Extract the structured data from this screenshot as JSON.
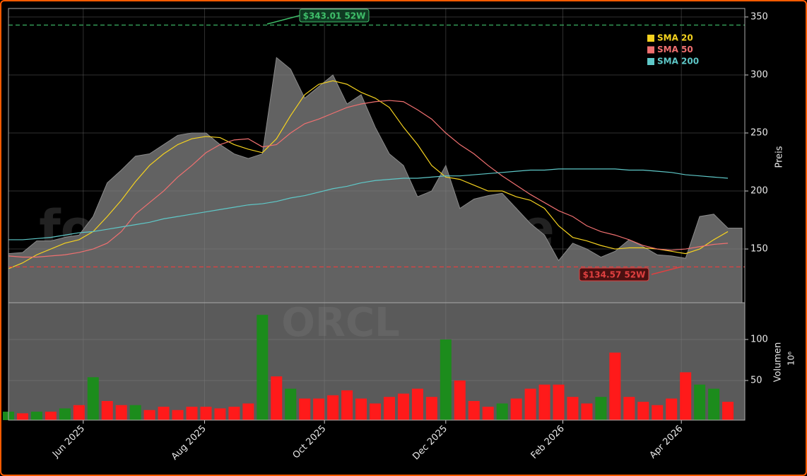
{
  "chart_data": {
    "type": "candlestick",
    "watermark": "forexsignale.trade",
    "symbol": "ORCL",
    "y_label": "Preis",
    "y2_label": "Volumen",
    "y2_scale_label": "10⁶",
    "legend": "upper right",
    "grid": true,
    "xlim": [
      0,
      52.2
    ],
    "xticks": [
      {
        "value": 5.3,
        "label": "Jun 2025"
      },
      {
        "value": 13.9,
        "label": "Aug 2025"
      },
      {
        "value": 22.4,
        "label": "Oct 2025"
      },
      {
        "value": 31.0,
        "label": "Dec 2025"
      },
      {
        "value": 39.3,
        "label": "Feb 2026"
      },
      {
        "value": 47.7,
        "label": "Apr 2026"
      }
    ],
    "ylim": [
      103.7,
      357.3
    ],
    "yticks": [
      150,
      200,
      250,
      300,
      350
    ],
    "y2lim": [
      1.7,
      144.8
    ],
    "y2ticks": [
      50,
      100
    ],
    "price": {
      "color": "#626262",
      "values": [
        146,
        147,
        157,
        157,
        160,
        162,
        178,
        207,
        218,
        230,
        232,
        240,
        248,
        250,
        250,
        240,
        232,
        228,
        232,
        315,
        305,
        280,
        290,
        300,
        275,
        283,
        255,
        232,
        222,
        195,
        200,
        222,
        185,
        193,
        196,
        198,
        185,
        172,
        162,
        140,
        155,
        150,
        143,
        148,
        158,
        152,
        145,
        144,
        142,
        178,
        180,
        168
      ]
    },
    "series": [
      {
        "name": "SMA 20",
        "color": "#f5d21f",
        "values": [
          133,
          138,
          145,
          150,
          155,
          158,
          165,
          178,
          192,
          208,
          222,
          232,
          240,
          245,
          247,
          246,
          240,
          236,
          233,
          245,
          265,
          283,
          292,
          295,
          292,
          285,
          280,
          272,
          255,
          240,
          222,
          212,
          210,
          205,
          200,
          200,
          195,
          192,
          185,
          170,
          160,
          157,
          153,
          150,
          151,
          151,
          150,
          148,
          146,
          150,
          158,
          165
        ]
      },
      {
        "name": "SMA 50",
        "color": "#f07070",
        "values": [
          144,
          143,
          143,
          144,
          145,
          147,
          150,
          155,
          165,
          180,
          190,
          200,
          212,
          222,
          233,
          240,
          244,
          245,
          238,
          240,
          250,
          258,
          262,
          267,
          272,
          275,
          277,
          278,
          277,
          270,
          262,
          250,
          240,
          232,
          222,
          213,
          205,
          197,
          190,
          183,
          178,
          170,
          165,
          162,
          158,
          153,
          150,
          149,
          150,
          152,
          154,
          155
        ]
      },
      {
        "name": "SMA 200",
        "color": "#5ec8c8",
        "values": [
          158,
          158,
          159,
          160,
          162,
          164,
          165,
          167,
          169,
          171,
          173,
          176,
          178,
          180,
          182,
          184,
          186,
          188,
          189,
          191,
          194,
          196,
          199,
          202,
          204,
          207,
          209,
          210,
          211,
          211,
          212,
          213,
          213,
          214,
          215,
          216,
          217,
          218,
          218,
          219,
          219,
          219,
          219,
          219,
          218,
          218,
          217,
          216,
          214,
          213,
          212,
          211
        ]
      }
    ],
    "volume": {
      "values": [
        12,
        10,
        12,
        12,
        16,
        20,
        54,
        25,
        20,
        20,
        14,
        18,
        14,
        18,
        18,
        16,
        18,
        22,
        130,
        55,
        40,
        28,
        28,
        32,
        38,
        28,
        22,
        30,
        34,
        40,
        30,
        100,
        50,
        25,
        18,
        22,
        28,
        40,
        45,
        45,
        30,
        22,
        30,
        84,
        30,
        24,
        20,
        28,
        60,
        45,
        40,
        24
      ],
      "colors": [
        "#1c8c1c",
        "#ff1a1a",
        "#1c8c1c",
        "#ff1a1a",
        "#1c8c1c",
        "#ff1a1a",
        "#1c8c1c",
        "#ff1a1a",
        "#ff1a1a",
        "#1c8c1c",
        "#ff1a1a",
        "#ff1a1a",
        "#ff1a1a",
        "#ff1a1a",
        "#ff1a1a",
        "#ff1a1a",
        "#ff1a1a",
        "#ff1a1a",
        "#1c8c1c",
        "#ff1a1a",
        "#1c8c1c",
        "#ff1a1a",
        "#ff1a1a",
        "#ff1a1a",
        "#ff1a1a",
        "#ff1a1a",
        "#ff1a1a",
        "#ff1a1a",
        "#ff1a1a",
        "#ff1a1a",
        "#ff1a1a",
        "#1c8c1c",
        "#ff1a1a",
        "#ff1a1a",
        "#ff1a1a",
        "#1c8c1c",
        "#ff1a1a",
        "#ff1a1a",
        "#ff1a1a",
        "#ff1a1a",
        "#ff1a1a",
        "#ff1a1a",
        "#1c8c1c",
        "#ff1a1a",
        "#ff1a1a",
        "#ff1a1a",
        "#ff1a1a",
        "#ff1a1a",
        "#ff1a1a",
        "#1c8c1c",
        "#1c8c1c",
        "#ff1a1a"
      ]
    },
    "high_line": {
      "value": 343.01,
      "label": "$343.01 52W",
      "color": "#3fbf6a"
    },
    "low_line": {
      "value": 134.57,
      "label": "$134.57 52W",
      "color": "#e04040"
    }
  }
}
